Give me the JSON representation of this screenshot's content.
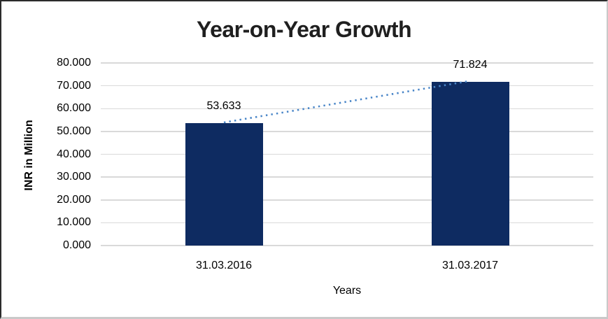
{
  "frame": {
    "background": "#ffffff",
    "border_dark": "#2b2b2b",
    "border_light": "#c9c9c9"
  },
  "chart_data": {
    "type": "bar",
    "title": "Year-on-Year Growth",
    "xlabel": "Years",
    "ylabel": "INR in Million",
    "categories": [
      "31.03.2016",
      "31.03.2017"
    ],
    "values": [
      53.633,
      71.824
    ],
    "value_labels": [
      "53.633",
      "71.824"
    ],
    "ytick_values": [
      80,
      70,
      60,
      50,
      40,
      30,
      20,
      10,
      0
    ],
    "ytick_labels": [
      "80.000",
      "70.000",
      "60.000",
      "50.000",
      "40.000",
      "30.000",
      "20.000",
      "10.000",
      "0.000"
    ],
    "ylim": [
      0,
      80
    ],
    "grid": "horizontal",
    "legend": "none",
    "bar_color": "#0E2B61",
    "gridline_color": "#d9d9d9",
    "trendline": {
      "style": "dotted",
      "color": "#4A86C8",
      "from_category": "31.03.2016",
      "from_value": 53.633,
      "to_category": "31.03.2017",
      "to_value": 71.824
    }
  }
}
